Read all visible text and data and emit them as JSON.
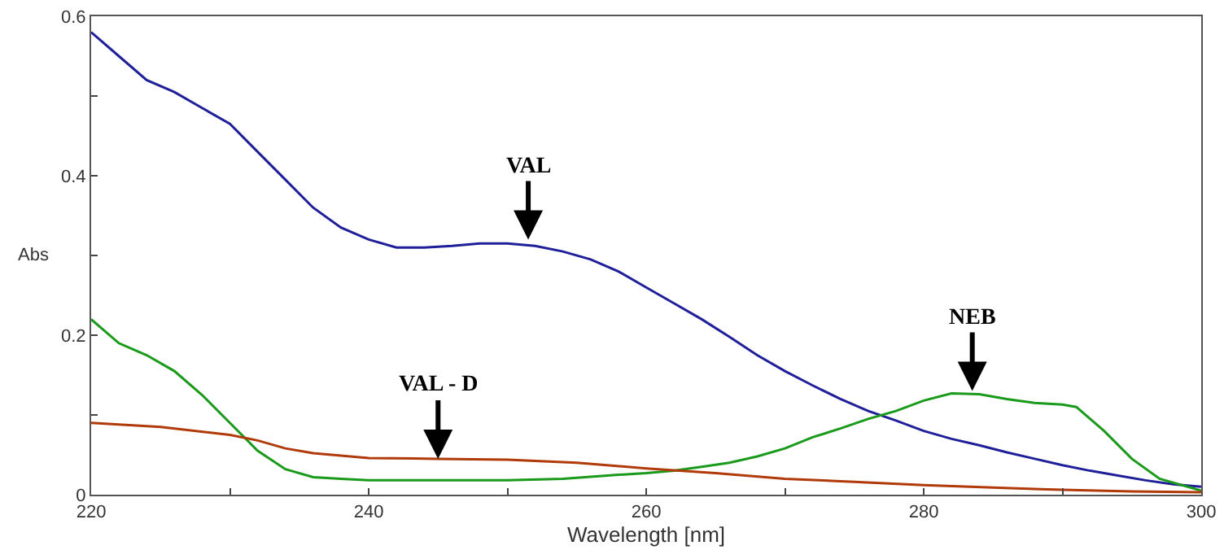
{
  "chart_data": {
    "type": "line",
    "xlabel": "Wavelength [nm]",
    "ylabel": "Abs",
    "xlim": [
      220,
      300
    ],
    "ylim": [
      0,
      0.6
    ],
    "xticks": [
      220,
      {
        "value": 230,
        "label": null
      },
      240,
      {
        "value": 250,
        "label": null
      },
      260,
      {
        "value": 270,
        "label": null
      },
      280,
      {
        "value": 290,
        "label": null
      },
      300
    ],
    "yticks": [
      0,
      {
        "value": 0.1,
        "label": null
      },
      0.2,
      {
        "value": 0.3,
        "label": null
      },
      0.4,
      {
        "value": 0.5,
        "label": null
      },
      0.6
    ],
    "grid": false,
    "marker": "none",
    "line_style": "solid",
    "series": [
      {
        "color": "#1f1f9a",
        "x": [
          220,
          222,
          224,
          226,
          228,
          230,
          232,
          234,
          236,
          238,
          240,
          242,
          244,
          246,
          248,
          250,
          252,
          254,
          256,
          258,
          260,
          262,
          264,
          266,
          268,
          270,
          272,
          274,
          276,
          278,
          280,
          282,
          284,
          286,
          288,
          290,
          292,
          294,
          296,
          298,
          300
        ],
        "values": [
          0.58,
          0.55,
          0.52,
          0.505,
          0.485,
          0.465,
          0.43,
          0.395,
          0.36,
          0.335,
          0.32,
          0.31,
          0.31,
          0.312,
          0.315,
          0.315,
          0.312,
          0.305,
          0.295,
          0.28,
          0.26,
          0.24,
          0.22,
          0.198,
          0.175,
          0.155,
          0.137,
          0.12,
          0.105,
          0.093,
          0.08,
          0.07,
          0.062,
          0.053,
          0.045,
          0.037,
          0.03,
          0.024,
          0.018,
          0.013,
          0.01
        ]
      },
      {
        "color": "#1a9a1a",
        "x": [
          220,
          222,
          224,
          226,
          228,
          230,
          232,
          234,
          236,
          238,
          240,
          245,
          250,
          254,
          258,
          260,
          262,
          264,
          266,
          268,
          270,
          272,
          274,
          276,
          278,
          280,
          282,
          284,
          286,
          288,
          290,
          291,
          293,
          295,
          297,
          300
        ],
        "values": [
          0.22,
          0.19,
          0.175,
          0.155,
          0.125,
          0.09,
          0.055,
          0.032,
          0.022,
          0.02,
          0.018,
          0.018,
          0.018,
          0.02,
          0.025,
          0.027,
          0.03,
          0.035,
          0.04,
          0.048,
          0.058,
          0.072,
          0.083,
          0.095,
          0.105,
          0.118,
          0.127,
          0.126,
          0.12,
          0.115,
          0.113,
          0.11,
          0.08,
          0.045,
          0.02,
          0.005
        ]
      },
      {
        "color": "#b03a0a",
        "x": [
          220,
          225,
          230,
          232,
          234,
          236,
          240,
          245,
          250,
          255,
          260,
          265,
          270,
          275,
          280,
          285,
          290,
          295,
          300
        ],
        "values": [
          0.09,
          0.085,
          0.075,
          0.068,
          0.058,
          0.052,
          0.046,
          0.045,
          0.044,
          0.04,
          0.033,
          0.027,
          0.02,
          0.016,
          0.012,
          0.009,
          0.006,
          0.004,
          0.003
        ]
      }
    ],
    "annotations": [
      {
        "text": "VAL",
        "x": 251.5,
        "y": 0.32
      },
      {
        "text": "VAL - D",
        "x": 245,
        "y": 0.045
      },
      {
        "text": "NEB",
        "x": 283.5,
        "y": 0.13
      }
    ]
  }
}
